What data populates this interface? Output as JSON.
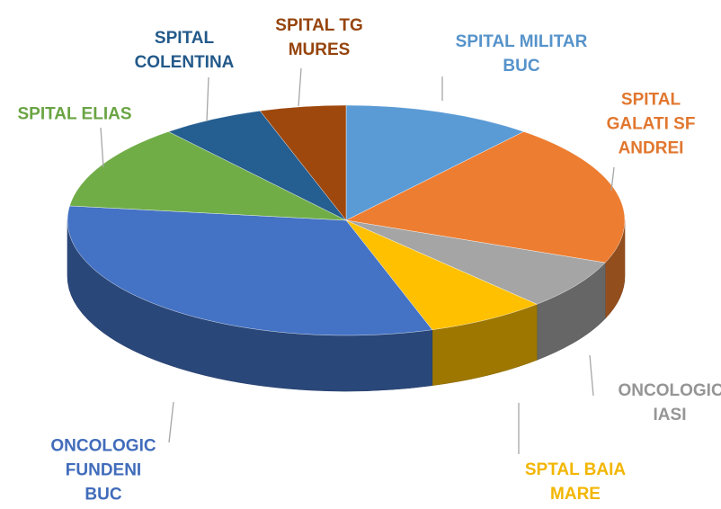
{
  "chart_data": {
    "type": "pie",
    "categories": [
      "SPITAL MILITAR BUC",
      "SPITAL GALATI SF ANDREI",
      "ONCOLOGIC IASI",
      "SPTAL BAIA MARE",
      "ONCOLOGIC FUNDENI BUC",
      "SPITAL ELIAS",
      "SPITAL COLENTINA",
      "SPITAL TG MURES"
    ],
    "values": [
      11,
      20,
      7,
      7,
      32,
      12,
      6,
      5
    ],
    "colors": [
      "#5b9bd5",
      "#ed7d31",
      "#a5a5a5",
      "#ffc000",
      "#4472c4",
      "#70ad47",
      "#255e91",
      "#9e480e"
    ]
  }
}
